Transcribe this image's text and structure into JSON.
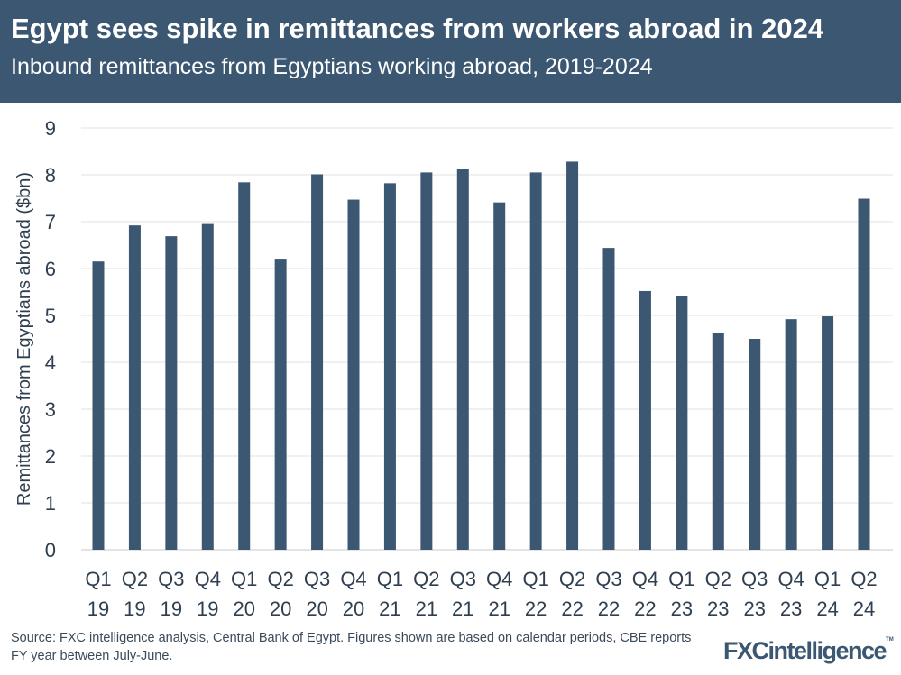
{
  "header": {
    "title": "Egypt sees spike in remittances from workers abroad in 2024",
    "subtitle": "Inbound remittances from Egyptians working abroad, 2019-2024"
  },
  "footer": {
    "source": "Source: FXC intelligence analysis, Central Bank of Egypt. Figures shown are based on calendar periods, CBE reports FY year between July-June.",
    "logo": "FXCintelligence",
    "logo_tm": "TM"
  },
  "chart_data": {
    "type": "bar",
    "title": "",
    "xlabel": "",
    "ylabel": "Remittances from Egyptians abroad ($bn)",
    "ylim": [
      0,
      9
    ],
    "yticks": [
      0,
      1,
      2,
      3,
      4,
      5,
      6,
      7,
      8,
      9
    ],
    "grid": true,
    "bar_color": "#3b5772",
    "categories": [
      [
        "Q1",
        "19"
      ],
      [
        "Q2",
        "19"
      ],
      [
        "Q3",
        "19"
      ],
      [
        "Q4",
        "19"
      ],
      [
        "Q1",
        "20"
      ],
      [
        "Q2",
        "20"
      ],
      [
        "Q3",
        "20"
      ],
      [
        "Q4",
        "20"
      ],
      [
        "Q1",
        "21"
      ],
      [
        "Q2",
        "21"
      ],
      [
        "Q3",
        "21"
      ],
      [
        "Q4",
        "21"
      ],
      [
        "Q1",
        "22"
      ],
      [
        "Q2",
        "22"
      ],
      [
        "Q3",
        "22"
      ],
      [
        "Q4",
        "22"
      ],
      [
        "Q1",
        "23"
      ],
      [
        "Q2",
        "23"
      ],
      [
        "Q3",
        "23"
      ],
      [
        "Q4",
        "23"
      ],
      [
        "Q1",
        "24"
      ],
      [
        "Q2",
        "24"
      ]
    ],
    "values": [
      6.15,
      6.92,
      6.69,
      6.95,
      7.84,
      6.21,
      8.01,
      7.47,
      7.82,
      8.05,
      8.12,
      7.41,
      8.05,
      8.28,
      6.44,
      5.52,
      5.42,
      4.62,
      4.5,
      4.92,
      4.98,
      7.49
    ]
  }
}
